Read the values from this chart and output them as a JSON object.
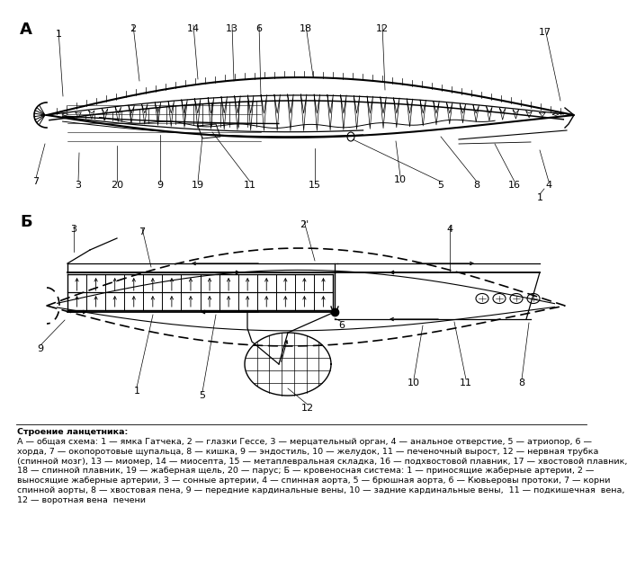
{
  "background_color": "#ffffff",
  "fig_width": 6.5,
  "fig_height": 6.14,
  "label_A": "А",
  "label_B": "Б",
  "caption_title": "Строение ланцетника:",
  "caption_lines": [
    "А — общая схема: 1 — ямка Гатчека, 2 — глазки Гессе, 3 — мерцательный орган, 4 — анальное отверстие, 5 — атриопор, 6 —",
    "хорда, 7 — окопоротовые щупальца, 8 — кишка, 9 — эндостиль, 10 — желудок, 11 — печеночный вырост, 12 — нервная трубка",
    "(спинной мозг), 13 — миомер, 14 — миосепта, 15 — метаплевральная складка, 16 — подхвостовой плавник, 17 — хвостовой плавник,",
    "18 — спинной плавник, 19 — жаберная щель, 20 — парус; Б — кровеносная система: 1 — приносящие жаберные артерии, 2 —",
    "выносящие жаберные артерии, 3 — сонные артерии, 4 — спинная аорта, 5 — брюшная аорта, 6 — Кювьеровы протоки, 7 — корни",
    "спинной аорты, 8 — хвостовая пена, 9 — передние кардинальные вены, 10 — задние кардинальные вены,  11 — подкишечная  вена,",
    "12 — воротная вена  печени"
  ],
  "line_color": "#000000",
  "text_color": "#000000",
  "caption_fontsize": 6.8,
  "label_fontsize": 13,
  "number_fontsize": 8.0
}
